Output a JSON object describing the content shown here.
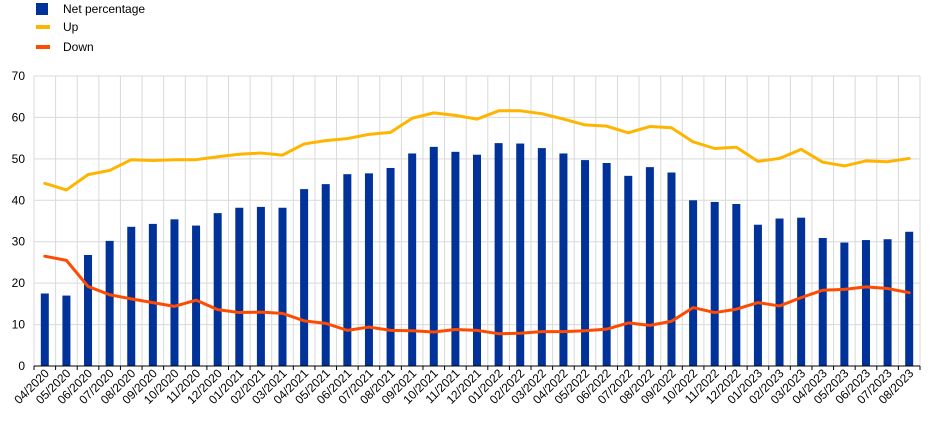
{
  "chart_data": {
    "type": "bar",
    "title": "",
    "xlabel": "",
    "ylabel": "",
    "ylim": [
      0,
      70
    ],
    "yticks": [
      0,
      10,
      20,
      30,
      40,
      50,
      60,
      70
    ],
    "grid": "vertical and horizontal gridlines",
    "legend_position": "top-left",
    "categories": [
      "04/2020",
      "05/2020",
      "06/2020",
      "07/2020",
      "08/2020",
      "09/2020",
      "10/2020",
      "11/2020",
      "12/2020",
      "01/2021",
      "02/2021",
      "03/2021",
      "04/2021",
      "05/2021",
      "06/2021",
      "07/2021",
      "08/2021",
      "09/2021",
      "10/2021",
      "11/2021",
      "12/2021",
      "01/2022",
      "02/2022",
      "03/2022",
      "04/2022",
      "05/2022",
      "06/2022",
      "07/2022",
      "08/2022",
      "09/2022",
      "10/2022",
      "11/2022",
      "12/2022",
      "01/2023",
      "02/2023",
      "03/2023",
      "04/2023",
      "05/2023",
      "06/2023",
      "07/2023",
      "08/2023"
    ],
    "series": [
      {
        "name": "Net percentage",
        "kind": "bar",
        "color": "#003299",
        "values": [
          17.5,
          17,
          26.8,
          30.2,
          33.6,
          34.3,
          35.4,
          33.9,
          36.9,
          38.2,
          38.4,
          38.2,
          42.7,
          43.9,
          46.3,
          46.5,
          47.8,
          51.3,
          52.9,
          51.7,
          51,
          53.8,
          53.7,
          52.6,
          51.3,
          49.7,
          49,
          45.9,
          48,
          46.7,
          40,
          39.6,
          39.1,
          34.1,
          35.6,
          35.8,
          30.9,
          29.8,
          30.4,
          30.6,
          32.4
        ]
      },
      {
        "name": "Up",
        "kind": "line",
        "color": "#FFB400",
        "values": [
          44.1,
          42.5,
          46.2,
          47.2,
          49.8,
          49.6,
          49.8,
          49.8,
          50.5,
          51.1,
          51.4,
          50.9,
          53.6,
          54.4,
          54.9,
          55.9,
          56.4,
          59.8,
          61.1,
          60.5,
          59.6,
          61.6,
          61.6,
          60.9,
          59.6,
          58.2,
          57.9,
          56.3,
          57.8,
          57.5,
          54.1,
          52.5,
          52.8,
          49.4,
          50.1,
          52.3,
          49.2,
          48.3,
          49.5,
          49.3,
          50.1
        ]
      },
      {
        "name": "Down",
        "kind": "line",
        "color": "#FF4B00",
        "values": [
          26.5,
          25.5,
          19.2,
          17.2,
          16.2,
          15.3,
          14.4,
          15.9,
          13.6,
          12.9,
          13,
          12.7,
          10.9,
          10.3,
          8.6,
          9.4,
          8.6,
          8.5,
          8.2,
          8.8,
          8.6,
          7.8,
          7.9,
          8.3,
          8.3,
          8.5,
          8.9,
          10.4,
          9.8,
          10.8,
          14.1,
          12.9,
          13.7,
          15.3,
          14.5,
          16.5,
          18.3,
          18.5,
          19.1,
          18.7,
          17.7
        ]
      }
    ]
  }
}
